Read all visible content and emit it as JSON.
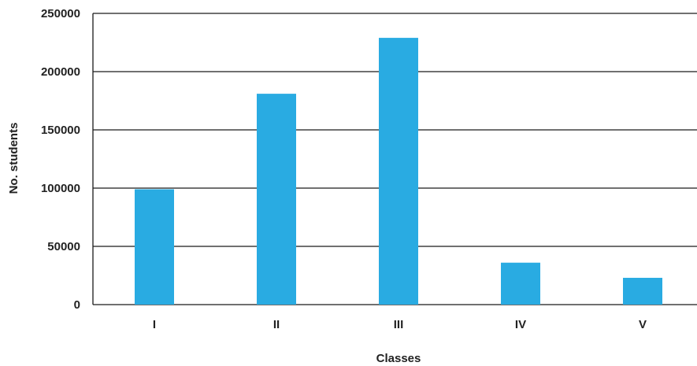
{
  "chart_data": {
    "type": "bar",
    "title": "",
    "xlabel": "Classes",
    "ylabel": "No. students",
    "categories": [
      "I",
      "II",
      "III",
      "IV",
      "V"
    ],
    "values": [
      99000,
      181000,
      229000,
      36000,
      23000
    ],
    "ylim": [
      0,
      250000
    ],
    "yticks": [
      0,
      50000,
      100000,
      150000,
      200000,
      250000
    ],
    "grid": true,
    "legend": "none",
    "bar_color": "#29abe2"
  }
}
